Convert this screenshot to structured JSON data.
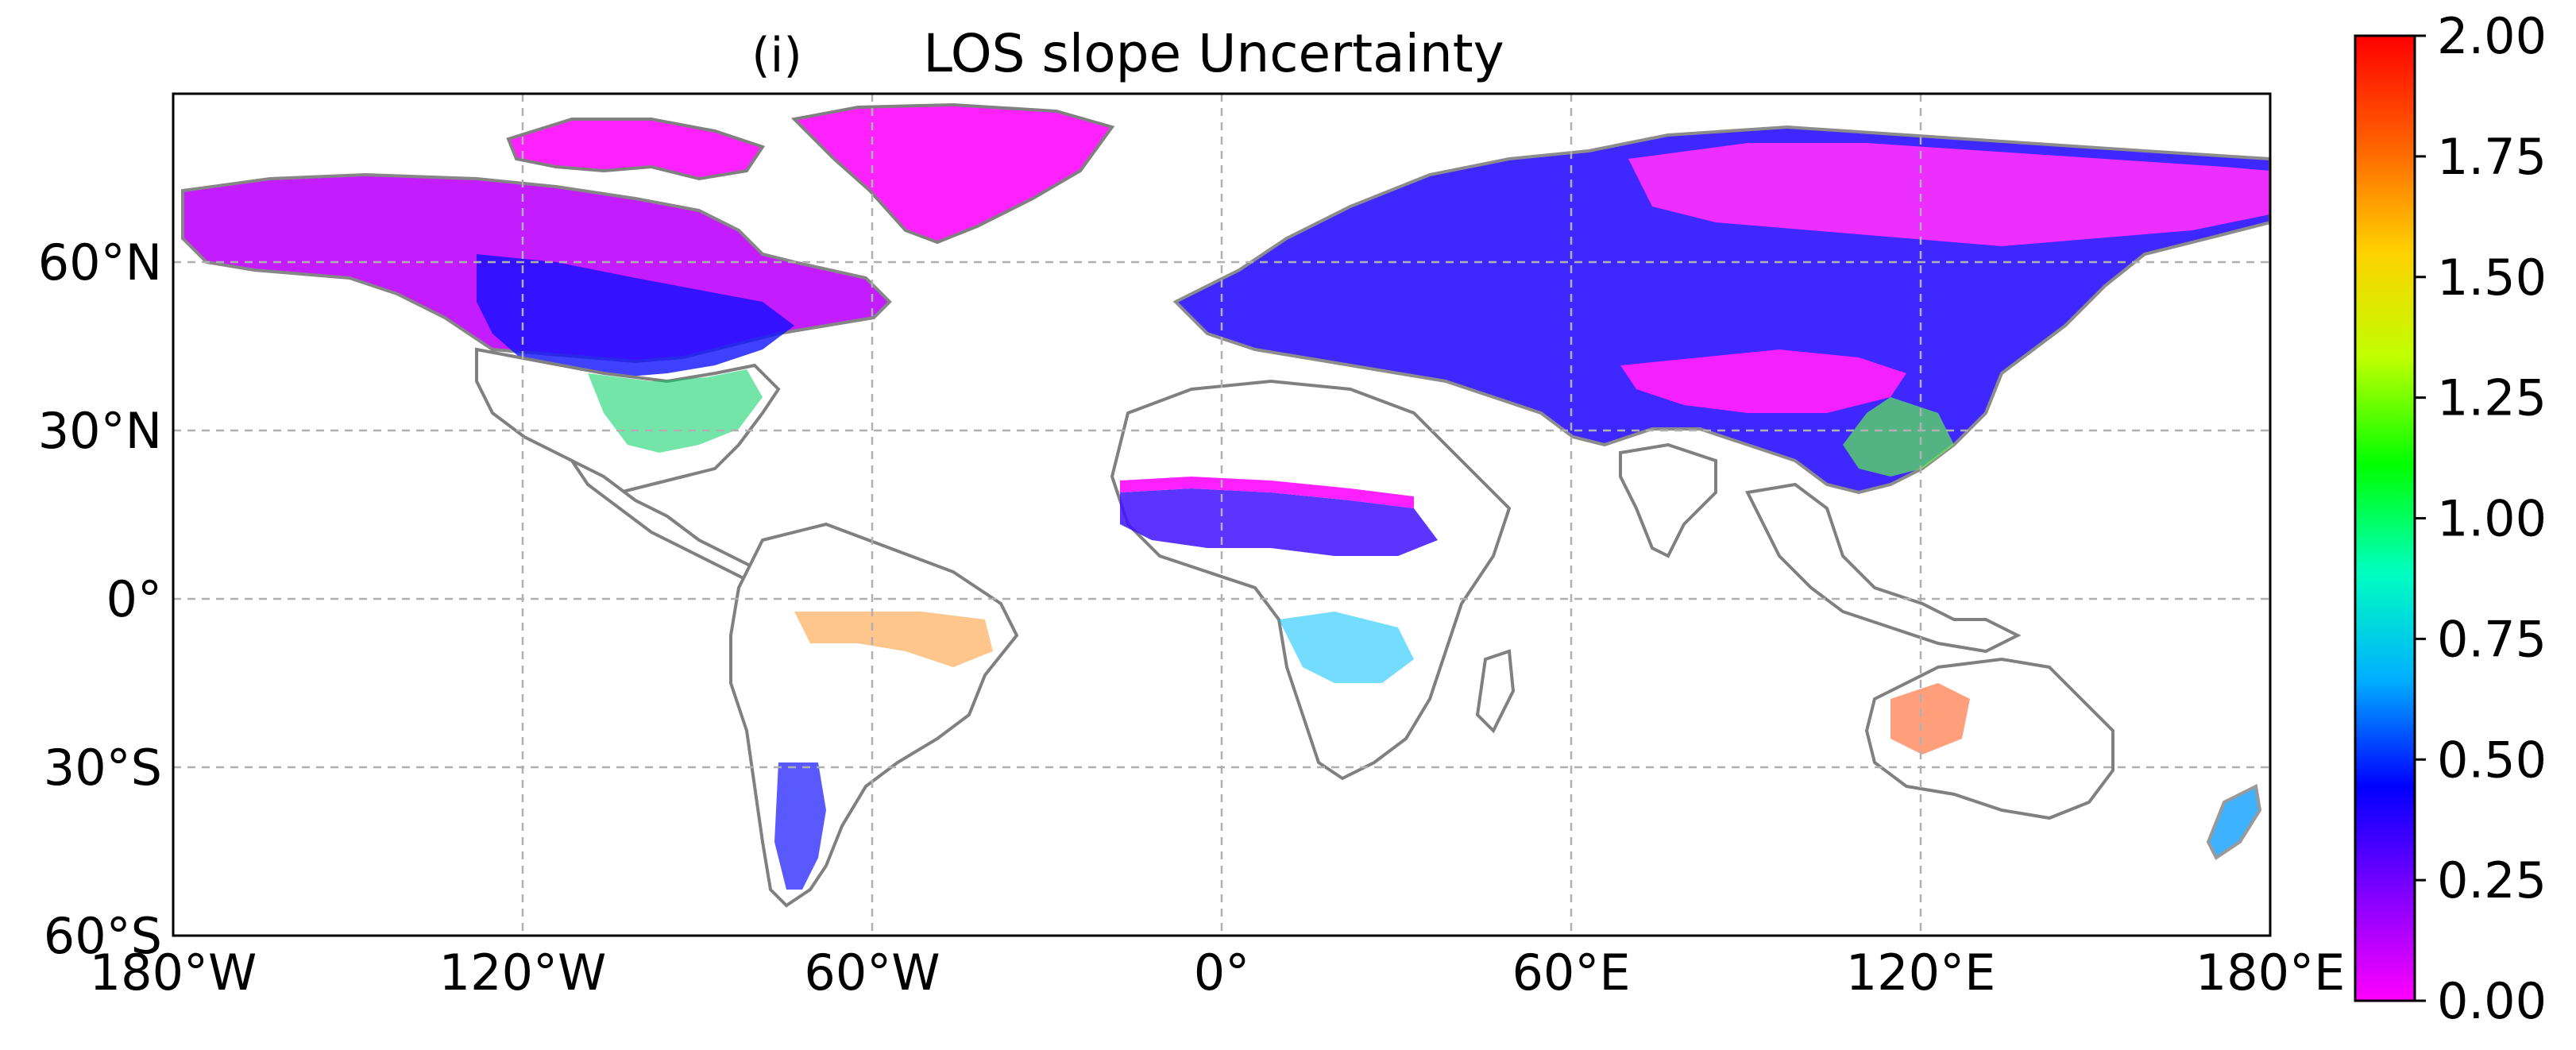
{
  "figure": {
    "panel_label": "(i)",
    "title": "LOS slope Uncertainty"
  },
  "map": {
    "projection": "equirectangular",
    "lon_range": [
      -180,
      180
    ],
    "lat_range": [
      -60,
      90
    ],
    "x_ticks": [
      {
        "lon": -180,
        "label": "180°W"
      },
      {
        "lon": -120,
        "label": "120°W"
      },
      {
        "lon": -60,
        "label": "60°W"
      },
      {
        "lon": 0,
        "label": "0°"
      },
      {
        "lon": 60,
        "label": "60°E"
      },
      {
        "lon": 120,
        "label": "120°E"
      },
      {
        "lon": 180,
        "label": "180°E"
      }
    ],
    "y_ticks": [
      {
        "lat": 60,
        "label": "60°N"
      },
      {
        "lat": 30,
        "label": "30°N"
      },
      {
        "lat": 0,
        "label": "0°"
      },
      {
        "lat": -30,
        "label": "30°S"
      },
      {
        "lat": -60,
        "label": "60°S"
      }
    ],
    "gridlines": true,
    "coastline_color": "#808080"
  },
  "colorbar": {
    "min": 0.0,
    "max": 2.0,
    "ticks": [
      "2.00",
      "1.75",
      "1.50",
      "1.25",
      "1.00",
      "0.75",
      "0.50",
      "0.25",
      "0.00"
    ],
    "colormap": "gist_rainbow (magenta → blue → cyan → green → yellow → red)",
    "stops": [
      "#ff00ff",
      "#8000ff",
      "#0000ff",
      "#00b0ff",
      "#00ffc0",
      "#00ff00",
      "#c0ff00",
      "#ffd000",
      "#ff6000",
      "#ff0000"
    ]
  }
}
